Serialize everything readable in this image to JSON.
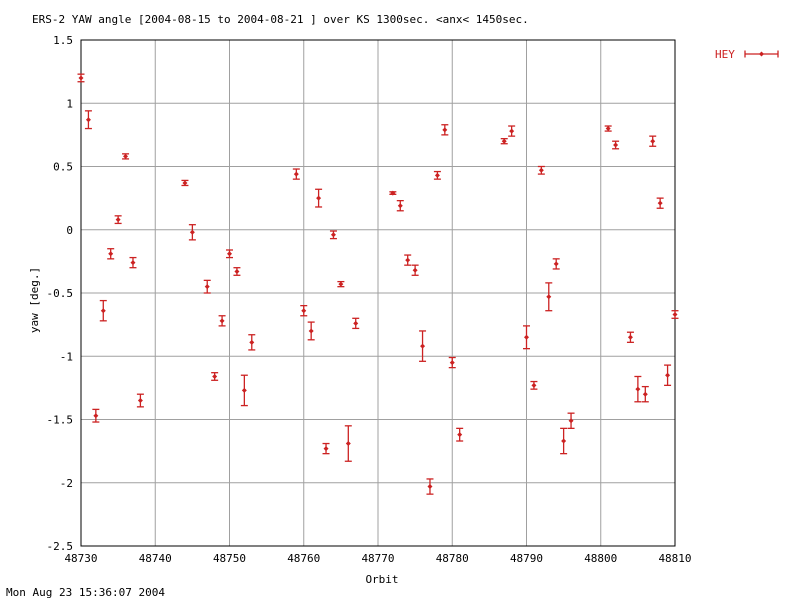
{
  "chart_data": {
    "type": "scatter",
    "title": "ERS-2 YAW angle [2004-08-15 to 2004-08-21 ] over KS 1300sec. <anx< 1450sec.",
    "xlabel": "Orbit",
    "ylabel": "yaw [deg.]",
    "xlim": [
      48730,
      48810
    ],
    "ylim": [
      -2.5,
      1.5
    ],
    "xticks": [
      48730,
      48740,
      48750,
      48760,
      48770,
      48780,
      48790,
      48800,
      48810
    ],
    "yticks": [
      -2.5,
      -2,
      -1.5,
      -1,
      -0.5,
      0,
      0.5,
      1,
      1.5
    ],
    "xtick_labels": [
      "48730",
      "48740",
      "48750",
      "48760",
      "48770",
      "48780",
      "48790",
      "48800",
      "48810"
    ],
    "ytick_labels": [
      "-2.5",
      "-2",
      "-1.5",
      "-1",
      "-0.5",
      "0",
      "0.5",
      "1",
      "1.5"
    ],
    "grid": true,
    "legend_position": "top-right",
    "colors": {
      "series": "#cc2222",
      "grid": "#a0a0a0",
      "axis": "#000000"
    },
    "series": [
      {
        "name": "HEY",
        "points": [
          {
            "x": 48730,
            "y": 1.2,
            "err": 0.03
          },
          {
            "x": 48731,
            "y": 0.87,
            "err": 0.07
          },
          {
            "x": 48732,
            "y": -1.47,
            "err": 0.05
          },
          {
            "x": 48733,
            "y": -0.64,
            "err": 0.08
          },
          {
            "x": 48734,
            "y": -0.19,
            "err": 0.04
          },
          {
            "x": 48735,
            "y": 0.08,
            "err": 0.03
          },
          {
            "x": 48736,
            "y": 0.58,
            "err": 0.02
          },
          {
            "x": 48737,
            "y": -0.26,
            "err": 0.04
          },
          {
            "x": 48738,
            "y": -1.35,
            "err": 0.05
          },
          {
            "x": 48744,
            "y": 0.37,
            "err": 0.02
          },
          {
            "x": 48745,
            "y": -0.02,
            "err": 0.06
          },
          {
            "x": 48747,
            "y": -0.45,
            "err": 0.05
          },
          {
            "x": 48748,
            "y": -1.16,
            "err": 0.03
          },
          {
            "x": 48749,
            "y": -0.72,
            "err": 0.04
          },
          {
            "x": 48750,
            "y": -0.19,
            "err": 0.03
          },
          {
            "x": 48751,
            "y": -0.33,
            "err": 0.03
          },
          {
            "x": 48752,
            "y": -1.27,
            "err": 0.12
          },
          {
            "x": 48753,
            "y": -0.89,
            "err": 0.06
          },
          {
            "x": 48759,
            "y": 0.44,
            "err": 0.04
          },
          {
            "x": 48760,
            "y": -0.64,
            "err": 0.04
          },
          {
            "x": 48761,
            "y": -0.8,
            "err": 0.07
          },
          {
            "x": 48762,
            "y": 0.25,
            "err": 0.07
          },
          {
            "x": 48764,
            "y": -0.04,
            "err": 0.03
          },
          {
            "x": 48765,
            "y": -0.43,
            "err": 0.02
          },
          {
            "x": 48766,
            "y": -1.69,
            "err": 0.14
          },
          {
            "x": 48763,
            "y": -1.73,
            "err": 0.04
          },
          {
            "x": 48767,
            "y": -0.74,
            "err": 0.04
          },
          {
            "x": 48772,
            "y": 0.29,
            "err": 0.01
          },
          {
            "x": 48773,
            "y": 0.19,
            "err": 0.04
          },
          {
            "x": 48774,
            "y": -0.24,
            "err": 0.04
          },
          {
            "x": 48775,
            "y": -0.32,
            "err": 0.04
          },
          {
            "x": 48776,
            "y": -0.92,
            "err": 0.12
          },
          {
            "x": 48777,
            "y": -2.03,
            "err": 0.06
          },
          {
            "x": 48778,
            "y": 0.43,
            "err": 0.03
          },
          {
            "x": 48779,
            "y": 0.79,
            "err": 0.04
          },
          {
            "x": 48780,
            "y": -1.05,
            "err": 0.04
          },
          {
            "x": 48781,
            "y": -1.62,
            "err": 0.05
          },
          {
            "x": 48787,
            "y": 0.7,
            "err": 0.02
          },
          {
            "x": 48788,
            "y": 0.78,
            "err": 0.04
          },
          {
            "x": 48790,
            "y": -0.85,
            "err": 0.09
          },
          {
            "x": 48791,
            "y": -1.23,
            "err": 0.03
          },
          {
            "x": 48792,
            "y": 0.47,
            "err": 0.03
          },
          {
            "x": 48793,
            "y": -0.53,
            "err": 0.11
          },
          {
            "x": 48794,
            "y": -0.27,
            "err": 0.04
          },
          {
            "x": 48795,
            "y": -1.67,
            "err": 0.1
          },
          {
            "x": 48796,
            "y": -1.51,
            "err": 0.06
          },
          {
            "x": 48801,
            "y": 0.8,
            "err": 0.02
          },
          {
            "x": 48802,
            "y": 0.67,
            "err": 0.03
          },
          {
            "x": 48804,
            "y": -0.85,
            "err": 0.04
          },
          {
            "x": 48805,
            "y": -1.26,
            "err": 0.1
          },
          {
            "x": 48806,
            "y": -1.3,
            "err": 0.06
          },
          {
            "x": 48807,
            "y": 0.7,
            "err": 0.04
          },
          {
            "x": 48808,
            "y": 0.21,
            "err": 0.04
          },
          {
            "x": 48809,
            "y": -1.15,
            "err": 0.08
          },
          {
            "x": 48810,
            "y": -0.67,
            "err": 0.03
          }
        ]
      }
    ],
    "footer_timestamp": "Mon Aug 23 15:36:07 2004"
  }
}
